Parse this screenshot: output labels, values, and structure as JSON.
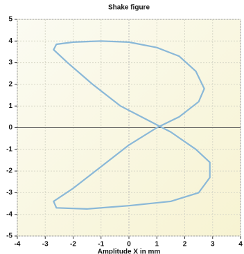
{
  "chart_data": {
    "type": "line",
    "title": "Shake figure",
    "x_label": "Amplitude X in mm",
    "x": [
      2.7,
      2.4,
      1.8,
      1.0,
      0.0,
      -1.0,
      -2.0,
      -2.6,
      -2.7,
      -2.2,
      -1.3,
      -0.3,
      0.6,
      1.5,
      2.4,
      2.9,
      2.9,
      2.5,
      1.5,
      0.0,
      -1.5,
      -2.6,
      -2.7,
      -2.0,
      -1.0,
      0.0,
      1.0,
      1.8,
      2.5,
      2.7
    ],
    "series": [
      {
        "color": "#8ab8d8",
        "values": [
          1.8,
          2.6,
          3.3,
          3.7,
          3.95,
          4.0,
          3.95,
          3.85,
          3.6,
          3.0,
          2.0,
          1.0,
          0.4,
          -0.2,
          -1.0,
          -1.6,
          -2.3,
          -3.0,
          -3.4,
          -3.6,
          -3.75,
          -3.7,
          -3.4,
          -2.8,
          -1.8,
          -0.8,
          0.0,
          0.5,
          1.2,
          1.8
        ]
      }
    ],
    "xlim": [
      -4,
      4
    ],
    "ylim": [
      -5,
      5
    ],
    "xticks": [
      -4,
      -3,
      -2,
      -1,
      0,
      1,
      2,
      3,
      4
    ],
    "yticks": [
      -5,
      -4,
      -3,
      -2,
      -1,
      0,
      1,
      2,
      3,
      4,
      5
    ],
    "grid": true
  }
}
